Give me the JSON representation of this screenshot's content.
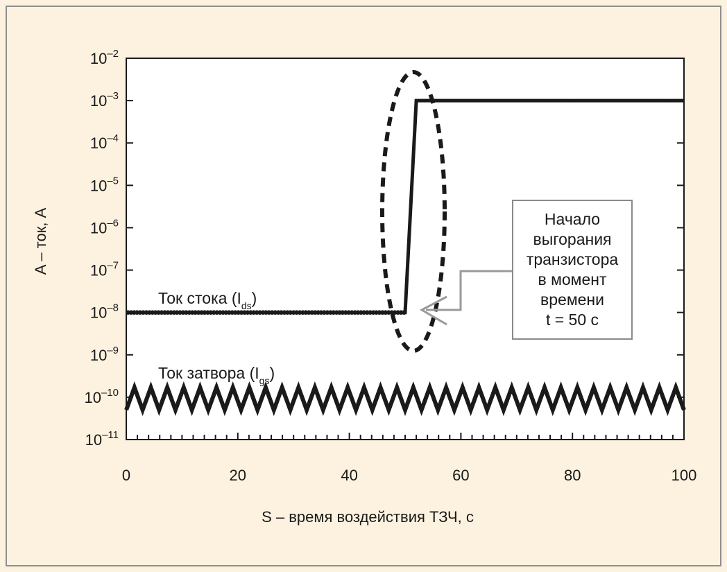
{
  "colors": {
    "background": "#fdf2df",
    "plot_background": "#ffffff",
    "series": "#1a1a1a",
    "annotation_border": "#8a8a8a",
    "arrow": "#9a9a9a"
  },
  "chart_data": {
    "type": "line",
    "title": "",
    "xlabel": "S – время воздействия ТЗЧ, с",
    "ylabel": "A – ток, А",
    "xlim": [
      0,
      100
    ],
    "ylim": [
      1e-11,
      0.01
    ],
    "yscale": "log",
    "grid": false,
    "x_ticks": [
      0,
      20,
      40,
      60,
      80,
      100
    ],
    "x_tick_labels": [
      "0",
      "20",
      "40",
      "60",
      "80",
      "100"
    ],
    "y_ticks": [
      {
        "base": "10",
        "exp": "–11",
        "value": 1e-11
      },
      {
        "base": "10",
        "exp": "–10",
        "value": 1e-10
      },
      {
        "base": "10",
        "exp": "–9",
        "value": 1e-09
      },
      {
        "base": "10",
        "exp": "–8",
        "value": 1e-08
      },
      {
        "base": "10",
        "exp": "–7",
        "value": 1e-07
      },
      {
        "base": "10",
        "exp": "–6",
        "value": 1e-06
      },
      {
        "base": "10",
        "exp": "–5",
        "value": 1e-05
      },
      {
        "base": "10",
        "exp": "–4",
        "value": 0.0001
      },
      {
        "base": "10",
        "exp": "–3",
        "value": 0.001
      },
      {
        "base": "10",
        "exp": "–2",
        "value": 0.01
      }
    ],
    "series": [
      {
        "name": "Ток стока (Ids)",
        "label_main": "Ток стока (I",
        "label_sub": "ds",
        "label_end": ")",
        "x": [
          0,
          50,
          52,
          100
        ],
        "y": [
          1e-08,
          1e-08,
          0.001,
          0.001
        ]
      },
      {
        "name": "Ток затвора (Igs)",
        "label_main": "Ток затвора (I",
        "label_sub": "gs",
        "label_end": ")",
        "noise": true,
        "y_center": 1e-10,
        "y_range": [
          5e-11,
          1.7e-10
        ],
        "x": [
          0,
          100
        ]
      }
    ],
    "annotation": {
      "lines": [
        "Начало",
        "выгорания",
        "транзистора",
        "в момент",
        "времени",
        "t = 50 с"
      ],
      "highlight_x": 51.5
    }
  }
}
